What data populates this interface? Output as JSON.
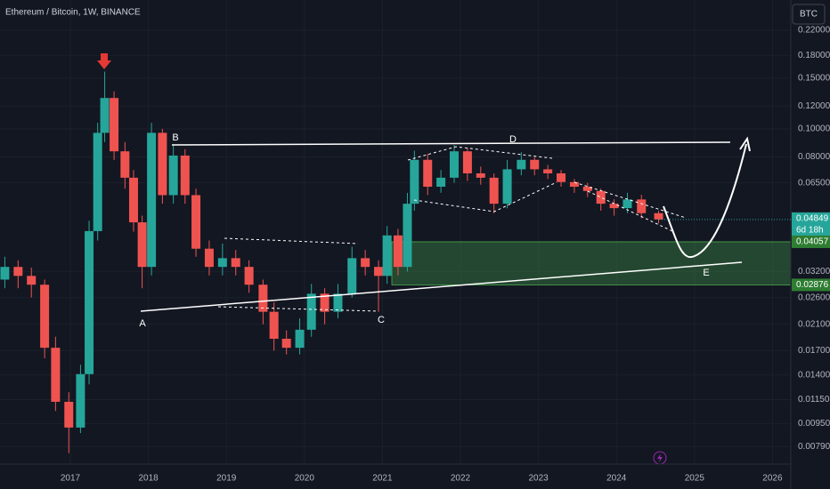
{
  "chart_data": {
    "type": "candlestick",
    "title": "Ethereum / Bitcoin, 1W, BINANCE",
    "currency_button": "BTC",
    "log_scale": true,
    "grid": true,
    "up_color": "#26a69a",
    "down_color": "#ef5350",
    "x": [
      2016.16,
      2016.33,
      2016.5,
      2016.67,
      2016.81,
      2016.98,
      2017.13,
      2017.24,
      2017.35,
      2017.44,
      2017.56,
      2017.7,
      2017.81,
      2017.92,
      2018.04,
      2018.18,
      2018.32,
      2018.47,
      2018.61,
      2018.78,
      2018.95,
      2019.12,
      2019.29,
      2019.47,
      2019.61,
      2019.77,
      2019.94,
      2020.09,
      2020.26,
      2020.43,
      2020.61,
      2020.78,
      2020.95,
      2021.06,
      2021.2,
      2021.32,
      2021.41,
      2021.58,
      2021.75,
      2021.92,
      2022.09,
      2022.26,
      2022.43,
      2022.6,
      2022.78,
      2022.95,
      2023.12,
      2023.29,
      2023.46,
      2023.63,
      2023.8,
      2023.97,
      2024.14,
      2024.32,
      2024.54
    ],
    "open": [
      0.03,
      0.0332,
      0.0309,
      0.0288,
      0.0174,
      0.0113,
      0.0092,
      0.0141,
      0.0442,
      0.0969,
      0.128,
      0.0836,
      0.0677,
      0.0474,
      0.0332,
      0.0969,
      0.0589,
      0.0808,
      0.0589,
      0.0384,
      0.0332,
      0.0356,
      0.0332,
      0.0288,
      0.0232,
      0.0187,
      0.0174,
      0.0201,
      0.0268,
      0.0232,
      0.0268,
      0.0356,
      0.0332,
      0.0309,
      0.0427,
      0.0332,
      0.055,
      0.0781,
      0.063,
      0.0677,
      0.0836,
      0.0701,
      0.0677,
      0.055,
      0.0724,
      0.0781,
      0.0724,
      0.0701,
      0.0654,
      0.063,
      0.0609,
      0.055,
      0.0531,
      0.0569,
      0.051
    ],
    "high": [
      0.036,
      0.035,
      0.033,
      0.03,
      0.019,
      0.0122,
      0.0152,
      0.048,
      0.105,
      0.158,
      0.135,
      0.09,
      0.072,
      0.05,
      0.105,
      0.1,
      0.088,
      0.085,
      0.062,
      0.041,
      0.04,
      0.038,
      0.035,
      0.03,
      0.025,
      0.02,
      0.022,
      0.029,
      0.028,
      0.029,
      0.039,
      0.038,
      0.035,
      0.046,
      0.045,
      0.06,
      0.084,
      0.082,
      0.072,
      0.088,
      0.086,
      0.074,
      0.07,
      0.078,
      0.083,
      0.08,
      0.075,
      0.072,
      0.067,
      0.065,
      0.062,
      0.057,
      0.06,
      0.059,
      0.052
    ],
    "low": [
      0.028,
      0.028,
      0.026,
      0.016,
      0.0105,
      0.0075,
      0.0088,
      0.013,
      0.041,
      0.09,
      0.078,
      0.062,
      0.044,
      0.028,
      0.031,
      0.055,
      0.055,
      0.055,
      0.036,
      0.031,
      0.031,
      0.031,
      0.027,
      0.021,
      0.017,
      0.0165,
      0.0165,
      0.019,
      0.021,
      0.022,
      0.026,
      0.031,
      0.0232,
      0.029,
      0.031,
      0.032,
      0.052,
      0.059,
      0.06,
      0.065,
      0.066,
      0.064,
      0.051,
      0.053,
      0.069,
      0.069,
      0.067,
      0.063,
      0.06,
      0.058,
      0.052,
      0.05,
      0.051,
      0.049,
      0.047
    ],
    "close": [
      0.0332,
      0.0309,
      0.0288,
      0.0174,
      0.0113,
      0.0092,
      0.0141,
      0.0442,
      0.0969,
      0.128,
      0.0836,
      0.0677,
      0.0474,
      0.0332,
      0.0969,
      0.0589,
      0.0808,
      0.0589,
      0.0384,
      0.0332,
      0.0356,
      0.0332,
      0.0288,
      0.0232,
      0.0187,
      0.0174,
      0.0201,
      0.0268,
      0.0232,
      0.0268,
      0.0356,
      0.0332,
      0.0309,
      0.0427,
      0.0332,
      0.055,
      0.0781,
      0.063,
      0.0677,
      0.0836,
      0.0701,
      0.0677,
      0.055,
      0.0724,
      0.0781,
      0.0724,
      0.0701,
      0.0654,
      0.063,
      0.0609,
      0.055,
      0.0531,
      0.0569,
      0.051,
      0.0485
    ],
    "xlim": [
      2016.098,
      2026.235
    ],
    "xticks": [
      2017,
      2018,
      2019,
      2020,
      2021,
      2022,
      2023,
      2024,
      2025,
      2026
    ],
    "ylim": [
      0.00687,
      0.28
    ],
    "yticks": [
      {
        "value": 0.22,
        "label": "0.22000"
      },
      {
        "value": 0.18,
        "label": "0.18000"
      },
      {
        "value": 0.15,
        "label": "0.15000"
      },
      {
        "value": 0.12,
        "label": "0.12000"
      },
      {
        "value": 0.1,
        "label": "0.10000"
      },
      {
        "value": 0.08,
        "label": "0.08000"
      },
      {
        "value": 0.065,
        "label": "0.06500"
      },
      {
        "value": 0.032,
        "label": "0.03200"
      },
      {
        "value": 0.026,
        "label": "0.02600"
      },
      {
        "value": 0.021,
        "label": "0.02100"
      },
      {
        "value": 0.017,
        "label": "0.01700"
      },
      {
        "value": 0.014,
        "label": "0.01400"
      },
      {
        "value": 0.0115,
        "label": "0.01150"
      },
      {
        "value": 0.0095,
        "label": "0.00950"
      },
      {
        "value": 0.0079,
        "label": "0.00790"
      }
    ],
    "last_price": 0.04849,
    "countdown": "6d 18h",
    "zone": [
      0.04057,
      0.02876
    ],
    "annotations": [
      "A",
      "B",
      "C",
      "D",
      "E"
    ]
  }
}
